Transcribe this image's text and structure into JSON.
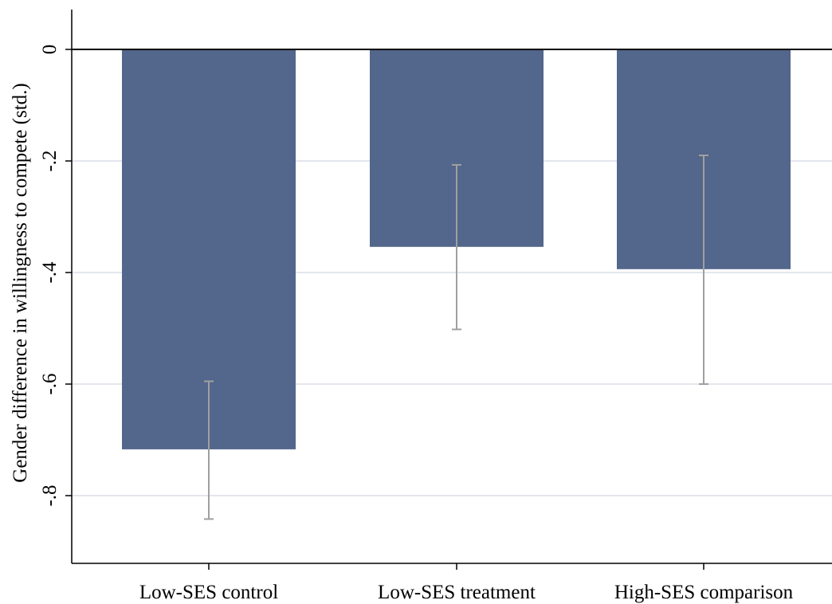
{
  "chart_data": {
    "type": "bar",
    "title": "",
    "xlabel": "",
    "ylabel": "Gender difference in willingness to compete (std.)",
    "categories": [
      "Low-SES control",
      "Low-SES treatment",
      "High-SES comparison"
    ],
    "values": [
      -0.717,
      -0.354,
      -0.394
    ],
    "error_low": [
      -0.842,
      -0.502,
      -0.6
    ],
    "error_high": [
      -0.595,
      -0.207,
      -0.19
    ],
    "ylim": [
      -0.92,
      0.07
    ],
    "yticks": [
      0,
      -0.2,
      -0.4,
      -0.6,
      -0.8
    ],
    "ytick_labels": [
      "0",
      "-.2",
      "-.4",
      "-.6",
      "-.8"
    ],
    "grid": true,
    "colors": {
      "bar": "#53668b",
      "error_bar": "#a0a0a0",
      "grid": "#e3e6ee",
      "zero_line": "#000000",
      "axis": "#000000"
    }
  }
}
